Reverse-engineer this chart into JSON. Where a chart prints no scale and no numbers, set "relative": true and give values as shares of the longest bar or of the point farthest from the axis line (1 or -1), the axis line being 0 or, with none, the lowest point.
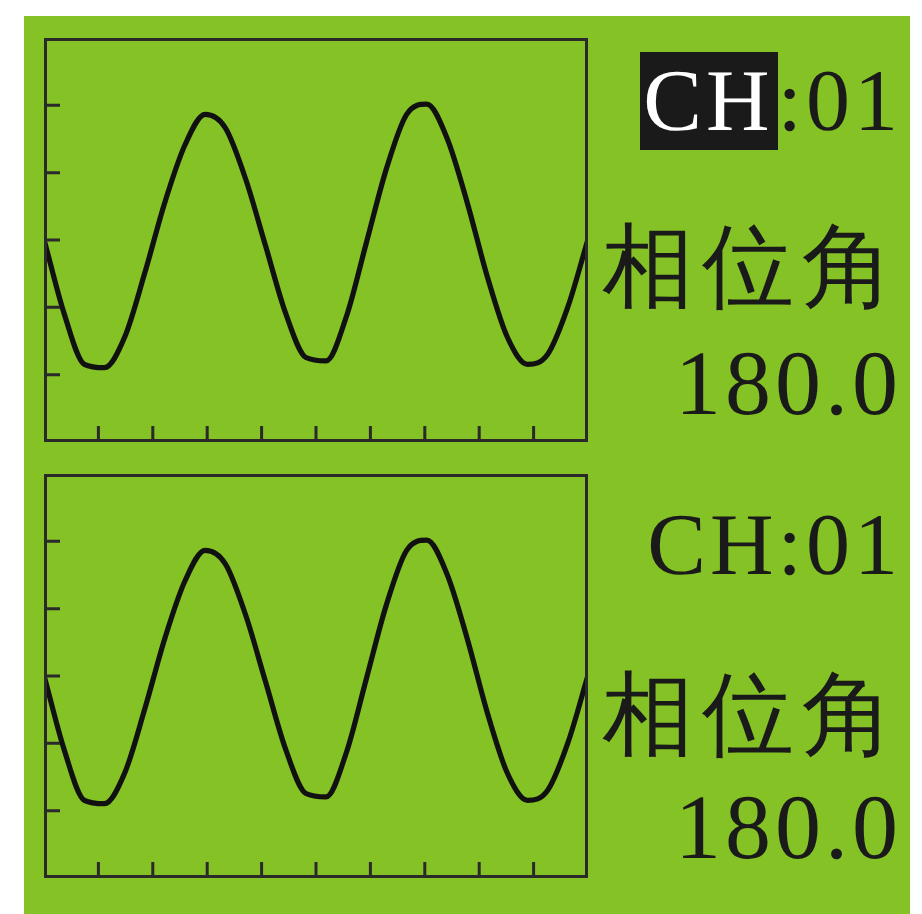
{
  "chart_data": [
    {
      "type": "line",
      "relative": true,
      "categories": [
        null,
        null,
        null,
        null,
        null,
        null,
        null,
        null,
        null,
        null,
        null,
        null,
        null,
        null,
        null,
        null,
        null,
        null,
        null,
        null,
        null,
        null,
        null,
        null,
        null,
        null,
        null,
        null
      ],
      "series": [
        {
          "color": "#111111",
          "values": [
            0.6,
            0.38,
            0.23,
            0.22,
            0.31,
            0.5,
            0.71,
            0.88,
            0.97,
            0.93,
            0.78,
            0.58,
            0.38,
            0.25,
            0.24,
            0.37,
            0.59,
            0.81,
            0.97,
            1.0,
            0.9,
            0.71,
            0.49,
            0.31,
            0.23,
            0.26,
            0.4,
            0.6
          ]
        }
      ],
      "annotations": [
        "CH:01",
        "相位角",
        "180.0"
      ]
    },
    {
      "type": "line",
      "relative": true,
      "categories": [
        null,
        null,
        null,
        null,
        null,
        null,
        null,
        null,
        null,
        null,
        null,
        null,
        null,
        null,
        null,
        null,
        null,
        null,
        null,
        null,
        null,
        null,
        null,
        null,
        null,
        null,
        null,
        null
      ],
      "series": [
        {
          "color": "#111111",
          "values": [
            0.6,
            0.38,
            0.23,
            0.22,
            0.31,
            0.5,
            0.71,
            0.88,
            0.97,
            0.93,
            0.78,
            0.58,
            0.38,
            0.25,
            0.24,
            0.37,
            0.59,
            0.81,
            0.97,
            1.0,
            0.9,
            0.71,
            0.49,
            0.31,
            0.23,
            0.26,
            0.4,
            0.6
          ]
        }
      ],
      "annotations": [
        "CH:01",
        "相位角",
        "180.0"
      ]
    }
  ]
}
